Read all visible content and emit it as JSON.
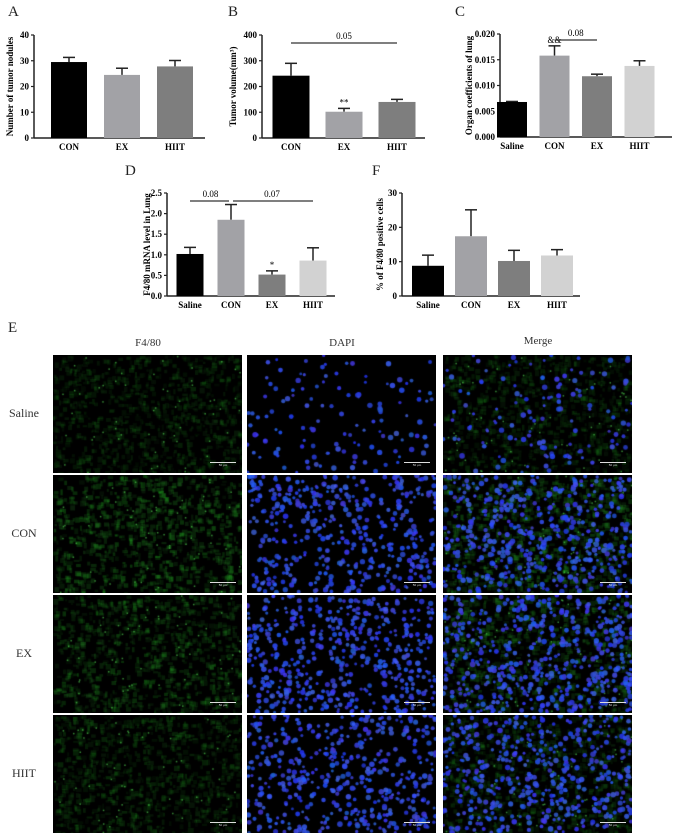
{
  "panel_labels": {
    "A": "A",
    "B": "B",
    "C": "C",
    "D": "D",
    "E": "E",
    "F": "F"
  },
  "chart_data": [
    {
      "id": "A",
      "type": "bar",
      "title": "",
      "xlabel": "",
      "ylabel": "Number of tumor nodules",
      "categories": [
        "CON",
        "EX",
        "HIIT"
      ],
      "values": [
        29.5,
        24.5,
        27.8
      ],
      "errors": [
        1.8,
        2.6,
        2.3
      ],
      "colors": [
        "#000000",
        "#a2a2a6",
        "#7e7e7e"
      ],
      "ylim": [
        0,
        40
      ],
      "yticks": [
        0,
        10,
        20,
        30,
        40
      ],
      "ytick_labels": [
        "0",
        "10",
        "20",
        "30",
        "40"
      ],
      "bar_annotations": [
        "",
        "",
        ""
      ],
      "brackets": []
    },
    {
      "id": "B",
      "type": "bar",
      "title": "",
      "xlabel": "",
      "ylabel": "Tumor volume(mm³)",
      "categories": [
        "CON",
        "EX",
        "HIIT"
      ],
      "values": [
        242,
        102,
        140
      ],
      "errors": [
        48,
        13,
        10
      ],
      "colors": [
        "#000000",
        "#a2a2a6",
        "#7e7e7e"
      ],
      "ylim": [
        0,
        400
      ],
      "yticks": [
        0,
        100,
        200,
        300,
        400
      ],
      "ytick_labels": [
        "0",
        "100",
        "200",
        "300",
        "400"
      ],
      "bar_annotations": [
        "",
        "**",
        ""
      ],
      "brackets": [
        {
          "from": 0,
          "to": 2,
          "label": "0.05"
        }
      ]
    },
    {
      "id": "C",
      "type": "bar",
      "title": "",
      "xlabel": "",
      "ylabel": "Organ coefficients of lung",
      "categories": [
        "Saline",
        "CON",
        "EX",
        "HIIT"
      ],
      "values": [
        0.0068,
        0.0158,
        0.0118,
        0.0138
      ],
      "errors": [
        0.0001,
        0.0019,
        0.0004,
        0.001
      ],
      "colors": [
        "#000000",
        "#a2a2a6",
        "#7e7e7e",
        "#d2d2d2"
      ],
      "ylim": [
        0,
        0.02
      ],
      "yticks": [
        0,
        0.005,
        0.01,
        0.015,
        0.02
      ],
      "ytick_labels": [
        "0.000",
        "0.005",
        "0.010",
        "0.015",
        "0.020"
      ],
      "bar_annotations": [
        "",
        "&&",
        "",
        ""
      ],
      "brackets": [
        {
          "from": 1,
          "to": 2,
          "label": "0.08"
        }
      ]
    },
    {
      "id": "D",
      "type": "bar",
      "title": "",
      "xlabel": "",
      "ylabel": "F4/80 mRNA level in Lung",
      "categories": [
        "Saline",
        "CON",
        "EX",
        "HIIT"
      ],
      "values": [
        1.02,
        1.85,
        0.52,
        0.86
      ],
      "errors": [
        0.16,
        0.37,
        0.09,
        0.31
      ],
      "colors": [
        "#000000",
        "#a2a2a6",
        "#7e7e7e",
        "#d2d2d2"
      ],
      "ylim": [
        0,
        2.5
      ],
      "yticks": [
        0,
        0.5,
        1,
        1.5,
        2,
        2.5
      ],
      "ytick_labels": [
        "0.0",
        "0.5",
        "1.0",
        "1.5",
        "2.0",
        "2.5"
      ],
      "bar_annotations": [
        "",
        "",
        "*",
        ""
      ],
      "brackets": [
        {
          "from": 0,
          "to": 1,
          "label": "0.08"
        },
        {
          "from": 1,
          "to": 3,
          "label": "0.07"
        }
      ]
    },
    {
      "id": "F",
      "type": "bar",
      "title": "",
      "xlabel": "",
      "ylabel": "% of F4/80 positive cells",
      "categories": [
        "Saline",
        "CON",
        "EX",
        "HIIT"
      ],
      "values": [
        8.8,
        17.4,
        10.2,
        11.8
      ],
      "errors": [
        3.1,
        7.7,
        3.1,
        1.7
      ],
      "colors": [
        "#000000",
        "#a2a2a6",
        "#7e7e7e",
        "#d2d2d2"
      ],
      "ylim": [
        0,
        30
      ],
      "yticks": [
        0,
        10,
        20,
        30
      ],
      "ytick_labels": [
        "0",
        "10",
        "20",
        "30"
      ],
      "bar_annotations": [
        "",
        "",
        "",
        ""
      ],
      "brackets": []
    }
  ],
  "microscopy": {
    "columns": [
      "F4/80",
      "DAPI",
      "Merge"
    ],
    "rows": [
      "Saline",
      "CON",
      "EX",
      "HIIT"
    ],
    "scale_bar": "50 μm"
  }
}
